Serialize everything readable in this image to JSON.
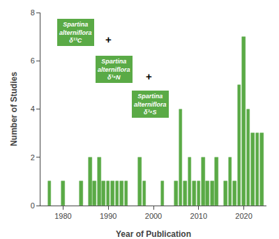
{
  "chart_data": {
    "type": "bar",
    "x": [
      1977,
      1980,
      1984,
      1986,
      1987,
      1988,
      1989,
      1990,
      1991,
      1992,
      1993,
      1994,
      1997,
      1998,
      2002,
      2005,
      2006,
      2007,
      2008,
      2009,
      2010,
      2011,
      2012,
      2013,
      2014,
      2016,
      2017,
      2018,
      2019,
      2020,
      2021,
      2022,
      2023,
      2024
    ],
    "values": [
      1,
      1,
      1,
      2,
      1,
      2,
      1,
      1,
      1,
      1,
      1,
      1,
      2,
      1,
      1,
      1,
      4,
      1,
      2,
      1,
      1,
      2,
      1,
      1,
      2,
      1,
      2,
      1,
      5,
      7,
      4,
      3,
      3,
      3
    ],
    "color": "#5aaa46",
    "xlabel": "Year of Publication",
    "ylabel": "Number of Studies",
    "xlim": [
      1975,
      2025
    ],
    "ylim": [
      0,
      8
    ],
    "xticks": [
      1980,
      1990,
      2000,
      2010,
      2020
    ],
    "yticks": [
      0,
      2,
      4,
      6,
      8
    ],
    "grid": false,
    "annotations": [
      {
        "text": "Spartina\nalterniflora\nδ¹³C",
        "color": "#5aaa46",
        "font_color": "white"
      },
      {
        "text": "+",
        "font_color": "black"
      },
      {
        "text": "Spartina\nalterniflora\nδ¹⁵N",
        "color": "#5aaa46",
        "font_color": "white"
      },
      {
        "text": "+",
        "font_color": "black"
      },
      {
        "text": "Spartina\nalterniflora\nδ³⁴S",
        "color": "#5aaa46",
        "font_color": "white"
      }
    ]
  }
}
